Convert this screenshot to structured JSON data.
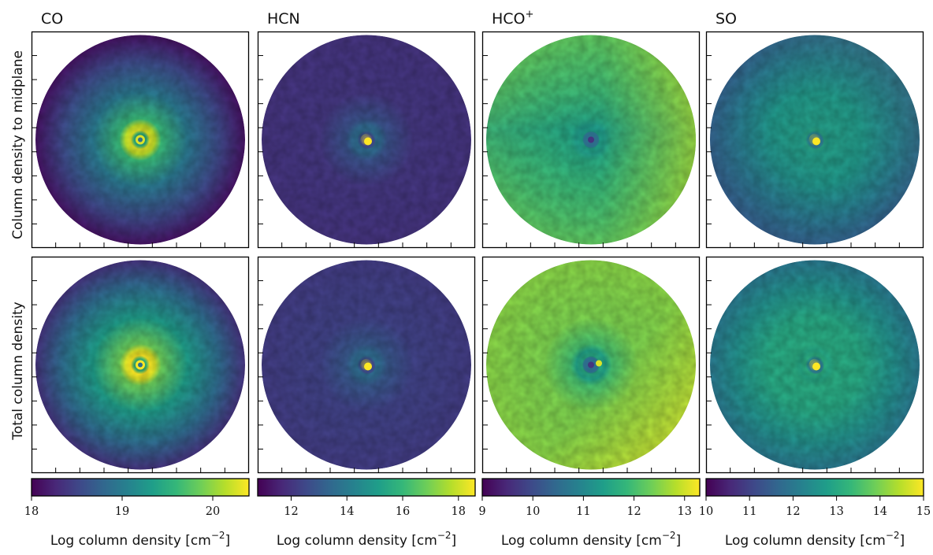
{
  "figure": {
    "row_labels": [
      "Column density to midplane",
      "Total column density"
    ]
  },
  "colors": {
    "viridis": [
      "#440154",
      "#482878",
      "#3e4989",
      "#31688e",
      "#26828e",
      "#1f9e89",
      "#35b779",
      "#6ece58",
      "#b5de2b",
      "#fde725"
    ]
  },
  "chart_data": [
    {
      "type": "heatmap",
      "title": "CO",
      "colorbar": {
        "label_main": "Log column density [cm",
        "label_sup": "−2",
        "label_end": "]",
        "ticks": [
          "18",
          "19",
          "20"
        ],
        "tick_values": [
          18,
          19,
          20
        ],
        "range": [
          18,
          20.4
        ]
      },
      "panels": [
        {
          "row": "Column density to midplane",
          "edge": 0.05,
          "mid": 0.4,
          "ring": 0.95,
          "core": 0.5,
          "gradient": "none"
        },
        {
          "row": "Total column density",
          "edge": 0.15,
          "mid": 0.55,
          "ring": 1.0,
          "core": 0.55,
          "gradient": "none"
        }
      ]
    },
    {
      "type": "heatmap",
      "title": "HCN",
      "colorbar": {
        "label_main": "Log column density [cm",
        "label_sup": "−2",
        "label_end": "]",
        "ticks": [
          "12",
          "14",
          "16",
          "18"
        ],
        "tick_values": [
          12,
          14,
          16,
          18
        ],
        "range": [
          10.8,
          18.6
        ]
      },
      "panels": [
        {
          "row": "Column density to midplane",
          "edge": 0.15,
          "mid": 0.16,
          "ring": 0.35,
          "core": 1.0,
          "gradient": "none"
        },
        {
          "row": "Total column density",
          "edge": 0.18,
          "mid": 0.2,
          "ring": 0.35,
          "core": 1.0,
          "gradient": "none"
        }
      ]
    },
    {
      "type": "heatmap",
      "title": "HCO",
      "title_sup": "+",
      "colorbar": {
        "label_main": "Log column density [cm",
        "label_sup": "−2",
        "label_end": "]",
        "ticks": [
          "9",
          "10",
          "11",
          "12",
          "13"
        ],
        "tick_values": [
          9,
          10,
          11,
          12,
          13
        ],
        "range": [
          9,
          13.3
        ]
      },
      "panels": [
        {
          "row": "Column density to midplane",
          "edge": 0.75,
          "mid": 0.68,
          "ring": 0.55,
          "core": 0.3,
          "gradient": "horizontal-band"
        },
        {
          "row": "Total column density",
          "edge": 0.82,
          "mid": 0.8,
          "ring": 0.6,
          "core": 0.4,
          "gradient": "right-bright"
        }
      ]
    },
    {
      "type": "heatmap",
      "title": "SO",
      "colorbar": {
        "label_main": "Log column density [cm",
        "label_sup": "−2",
        "label_end": "]",
        "ticks": [
          "10",
          "11",
          "12",
          "13",
          "14",
          "15"
        ],
        "tick_values": [
          10,
          11,
          12,
          13,
          14,
          15
        ],
        "range": [
          10,
          15
        ]
      },
      "panels": [
        {
          "row": "Column density to midplane",
          "edge": 0.3,
          "mid": 0.55,
          "ring": 0.6,
          "core": 1.0,
          "gradient": "diagonal"
        },
        {
          "row": "Total column density",
          "edge": 0.4,
          "mid": 0.6,
          "ring": 0.62,
          "core": 1.0,
          "gradient": "none"
        }
      ]
    }
  ]
}
